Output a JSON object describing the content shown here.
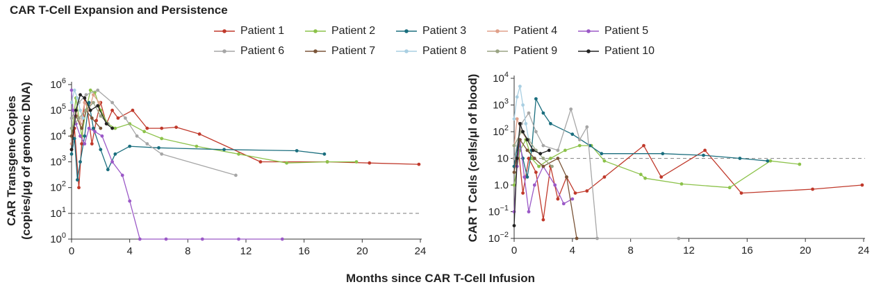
{
  "title": "CAR T-Cell Expansion and Persistence",
  "xlabel": "Months since CAR T-Cell Infusion",
  "legend": [
    {
      "name": "Patient 1",
      "color": "#c0392b"
    },
    {
      "name": "Patient 2",
      "color": "#8cc24a"
    },
    {
      "name": "Patient 3",
      "color": "#1a6e7e"
    },
    {
      "name": "Patient 4",
      "color": "#e0a08a"
    },
    {
      "name": "Patient 5",
      "color": "#9b59c7"
    },
    {
      "name": "Patient 6",
      "color": "#a6a6a6"
    },
    {
      "name": "Patient 7",
      "color": "#7a5438"
    },
    {
      "name": "Patient 8",
      "color": "#a9cfe2"
    },
    {
      "name": "Patient 9",
      "color": "#9aa484"
    },
    {
      "name": "Patient 10",
      "color": "#222222"
    }
  ],
  "chart_data": [
    {
      "type": "line",
      "ylabel": [
        "CAR Transgene Copies",
        "(copies/μg of genomic DNA)"
      ],
      "yscale": "log",
      "xlim": [
        0,
        24
      ],
      "ylim": [
        1,
        1000000
      ],
      "xticks": [
        "0",
        "4",
        "8",
        "12",
        "16",
        "20",
        "24"
      ],
      "yticks": [
        {
          "base": "10",
          "exp": "0"
        },
        {
          "base": "10",
          "exp": "1"
        },
        {
          "base": "10",
          "exp": "2"
        },
        {
          "base": "10",
          "exp": "3"
        },
        {
          "base": "10",
          "exp": "4"
        },
        {
          "base": "10",
          "exp": "5"
        },
        {
          "base": "10",
          "exp": "6"
        }
      ],
      "reference_line": 10,
      "series": [
        {
          "name": "Patient 1",
          "x": [
            0,
            0.2,
            0.5,
            0.7,
            0.9,
            1.1,
            1.4,
            1.7,
            2.0,
            2.4,
            2.8,
            3.2,
            4.2,
            5.2,
            6.2,
            7.2,
            8.8,
            13.0,
            17.6,
            20.5,
            23.9
          ],
          "y": [
            3000,
            20000,
            100,
            5000,
            300000,
            100000,
            5000,
            40000,
            200000,
            30000,
            100000,
            50000,
            100000,
            20000,
            20000,
            22000,
            12000,
            1000,
            1000,
            900,
            800
          ]
        },
        {
          "name": "Patient 2",
          "x": [
            0,
            0.3,
            0.7,
            1.0,
            1.3,
            1.6,
            2.0,
            2.5,
            3.0,
            4.0,
            5.0,
            6.2,
            8.6,
            11.5,
            14.8,
            17.6,
            19.6
          ],
          "y": [
            10000,
            300000,
            10000,
            100000,
            600000,
            500000,
            100000,
            30000,
            20000,
            30000,
            15000,
            8000,
            4000,
            2000,
            900,
            1000,
            1000
          ]
        },
        {
          "name": "Patient 3",
          "x": [
            0,
            0.2,
            0.4,
            0.6,
            0.9,
            1.2,
            1.5,
            2.0,
            2.5,
            3.0,
            4.0,
            6.0,
            10.5,
            15.5,
            17.4
          ],
          "y": [
            2000,
            8000,
            200,
            1000,
            10000,
            200000,
            20000,
            3000,
            500,
            2000,
            4000,
            3500,
            3000,
            2700,
            2000
          ]
        },
        {
          "name": "Patient 4",
          "x": [
            0,
            0.3,
            0.6,
            0.9,
            1.2,
            1.5,
            1.9
          ],
          "y": [
            5000,
            100000,
            30000,
            200000,
            100000,
            400000,
            200000
          ]
        },
        {
          "name": "Patient 5",
          "x": [
            0,
            0.1,
            0.3,
            0.6,
            0.9,
            1.2,
            1.6,
            2.1,
            2.8,
            3.5,
            4.0,
            4.7,
            6.5,
            9.0,
            11.5,
            14.5
          ],
          "y": [
            600000,
            100000,
            30000,
            10000,
            5000,
            20000,
            15000,
            10000,
            1000,
            300,
            30,
            1,
            1,
            1,
            1,
            1
          ]
        },
        {
          "name": "Patient 6",
          "x": [
            0,
            0.5,
            1.0,
            1.8,
            2.8,
            3.7,
            4.5,
            5.2,
            6.2,
            11.3
          ],
          "y": [
            50000,
            200000,
            400000,
            600000,
            200000,
            50000,
            10000,
            5000,
            2000,
            300
          ]
        },
        {
          "name": "Patient 7",
          "x": [
            0,
            0.3,
            0.7,
            1.0,
            1.4,
            2.0
          ],
          "y": [
            10000,
            60000,
            20000,
            100000,
            50000,
            20000
          ]
        },
        {
          "name": "Patient 8",
          "x": [
            0,
            0.2,
            0.4,
            0.6,
            0.8
          ],
          "y": [
            200000,
            600000,
            300000,
            100000,
            50000
          ]
        },
        {
          "name": "Patient 9",
          "x": [
            0,
            0.5,
            1.0,
            1.5,
            2.0,
            2.5
          ],
          "y": [
            20000,
            50000,
            100000,
            200000,
            60000,
            30000
          ]
        },
        {
          "name": "Patient 10",
          "x": [
            0,
            0.3,
            0.6,
            0.9,
            1.3,
            1.8,
            2.4,
            2.8
          ],
          "y": [
            3000,
            100000,
            400000,
            300000,
            100000,
            150000,
            30000,
            20000
          ]
        }
      ]
    },
    {
      "type": "line",
      "ylabel": [
        "CAR T Cells (cells/μl of blood)"
      ],
      "yscale": "log",
      "xlim": [
        0,
        24
      ],
      "ylim": [
        0.01,
        10000
      ],
      "xticks": [
        "0",
        "4",
        "8",
        "12",
        "16",
        "20",
        "24"
      ],
      "yticks": [
        {
          "base": "10",
          "exp": "−2"
        },
        {
          "base": "10",
          "exp": "−1"
        },
        {
          "base": "1.0",
          "exp": ""
        },
        {
          "base": "10",
          "exp": ""
        },
        {
          "base": "10",
          "exp": "2"
        },
        {
          "base": "10",
          "exp": "3"
        },
        {
          "base": "10",
          "exp": "4"
        }
      ],
      "reference_line": 10,
      "series": [
        {
          "name": "Patient 1",
          "x": [
            0,
            0.3,
            0.6,
            1.0,
            1.5,
            2.0,
            2.5,
            3.0,
            3.6,
            4.2,
            5.0,
            6.2,
            8.9,
            10.1,
            13.1,
            15.6,
            20.5,
            23.9
          ],
          "y": [
            5,
            20,
            0.5,
            10,
            3,
            0.05,
            5,
            0.3,
            2,
            0.5,
            0.6,
            2,
            30,
            2,
            20,
            0.5,
            0.7,
            1
          ]
        },
        {
          "name": "Patient 2",
          "x": [
            0,
            0.4,
            0.8,
            1.2,
            1.7,
            2.5,
            3.5,
            4.5,
            5.3,
            6.2,
            8.7,
            9.0,
            11.5,
            14.8,
            17.6,
            19.6
          ],
          "y": [
            1,
            20,
            50,
            10,
            5,
            10,
            20,
            30,
            30,
            8,
            2.5,
            1.8,
            1.1,
            0.8,
            8,
            6
          ]
        },
        {
          "name": "Patient 3",
          "x": [
            0,
            0.3,
            0.6,
            0.9,
            1.2,
            1.5,
            2.0,
            2.5,
            4.0,
            5.2,
            6.0,
            10.2,
            13.0,
            15.5,
            17.4
          ],
          "y": [
            5,
            50,
            10,
            2,
            20,
            1700,
            500,
            200,
            80,
            30,
            15,
            15,
            13,
            10,
            8
          ]
        },
        {
          "name": "Patient 4",
          "x": [
            0,
            0.2,
            0.5,
            0.9,
            1.3
          ],
          "y": [
            30,
            300,
            100,
            50,
            20
          ]
        },
        {
          "name": "Patient 5",
          "x": [
            0,
            0.2,
            0.4,
            0.7,
            1.0,
            1.4,
            2.0,
            2.8,
            3.4,
            4.0
          ],
          "y": [
            0.1,
            5,
            50,
            2,
            0.1,
            1,
            5,
            1,
            0.2,
            0.3
          ]
        },
        {
          "name": "Patient 6",
          "x": [
            0,
            0.5,
            1.0,
            1.5,
            2.0,
            3.0,
            3.9,
            4.5,
            5.0,
            5.7,
            11.3
          ],
          "y": [
            10,
            200,
            500,
            100,
            30,
            20,
            700,
            50,
            150,
            0.01,
            0.01
          ]
        },
        {
          "name": "Patient 7",
          "x": [
            0,
            0.4,
            0.9,
            1.4,
            2.0,
            3.0,
            3.6,
            4.3
          ],
          "y": [
            3,
            50,
            20,
            10,
            5,
            10,
            2,
            0.01
          ]
        },
        {
          "name": "Patient 8",
          "x": [
            0,
            0.2,
            0.4,
            0.6,
            0.8,
            1.0
          ],
          "y": [
            300,
            2000,
            5000,
            1000,
            200,
            50
          ]
        },
        {
          "name": "Patient 9",
          "x": [
            0,
            0.5,
            1.0,
            1.5,
            2.0,
            2.6
          ],
          "y": [
            30,
            100,
            50,
            20,
            10,
            5
          ]
        },
        {
          "name": "Patient 10",
          "x": [
            0,
            0.2,
            0.4,
            0.6,
            0.9,
            1.3,
            1.8,
            2.4
          ],
          "y": [
            0.03,
            10,
            200,
            100,
            50,
            20,
            15,
            20
          ]
        }
      ]
    }
  ]
}
